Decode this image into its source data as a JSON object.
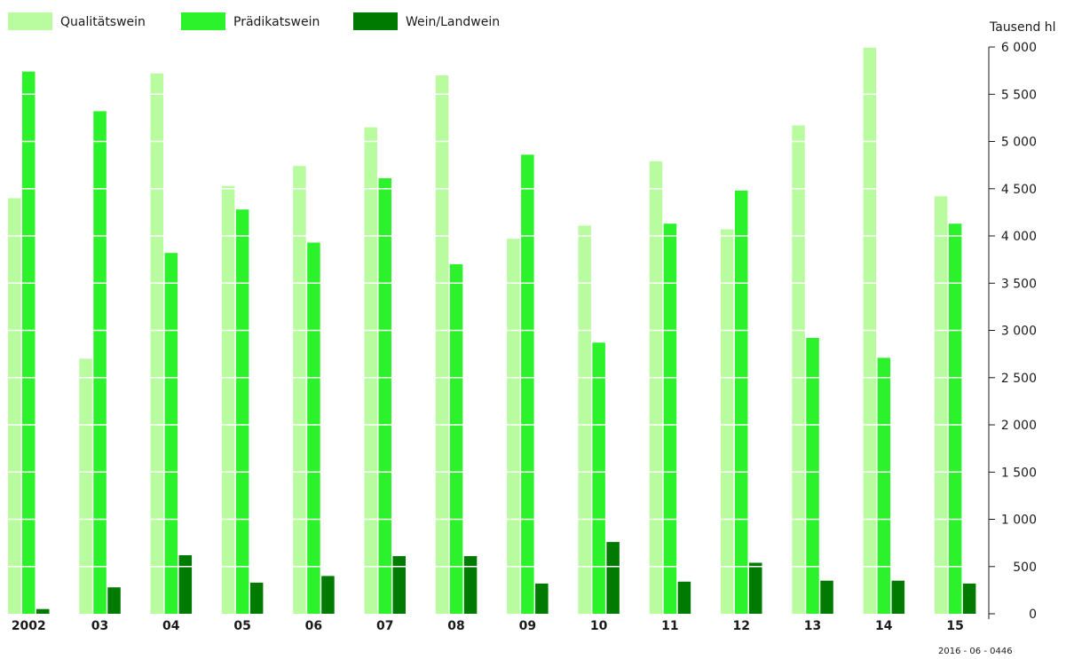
{
  "chart_data": {
    "type": "bar",
    "categories": [
      "2002",
      "03",
      "04",
      "05",
      "06",
      "07",
      "08",
      "09",
      "10",
      "11",
      "12",
      "13",
      "14",
      "15"
    ],
    "series": [
      {
        "name": "Qualitätswein",
        "color": "#b9fca0",
        "values": [
          4400,
          2700,
          5720,
          4530,
          4740,
          5150,
          5700,
          3970,
          4110,
          4790,
          4070,
          5170,
          6000,
          4420
        ]
      },
      {
        "name": "Prädikatswein",
        "color": "#2bf22b",
        "values": [
          5740,
          5320,
          3820,
          4280,
          3930,
          4610,
          3700,
          4860,
          2870,
          4130,
          4480,
          2920,
          2710,
          4130
        ]
      },
      {
        "name": "Wein/Landwein",
        "color": "#007a00",
        "values": [
          50,
          280,
          620,
          330,
          400,
          610,
          610,
          320,
          760,
          340,
          540,
          350,
          350,
          320
        ]
      }
    ],
    "ylabel": "Tausend hl",
    "ylim": [
      0,
      6000
    ],
    "yticks": [
      0,
      500,
      1000,
      1500,
      2000,
      2500,
      3000,
      3500,
      4000,
      4500,
      5000,
      5500,
      6000
    ],
    "ytick_labels": [
      "0",
      "500",
      "1 000",
      "1 500",
      "2 000",
      "2 500",
      "3 000",
      "3 500",
      "4 000",
      "4 500",
      "5 000",
      "5 500",
      "6 000"
    ],
    "axis_side": "right",
    "grid": "white horizontal lines across bars",
    "legend_position": "top-left"
  },
  "footer_code": "2016 - 06 - 0446"
}
